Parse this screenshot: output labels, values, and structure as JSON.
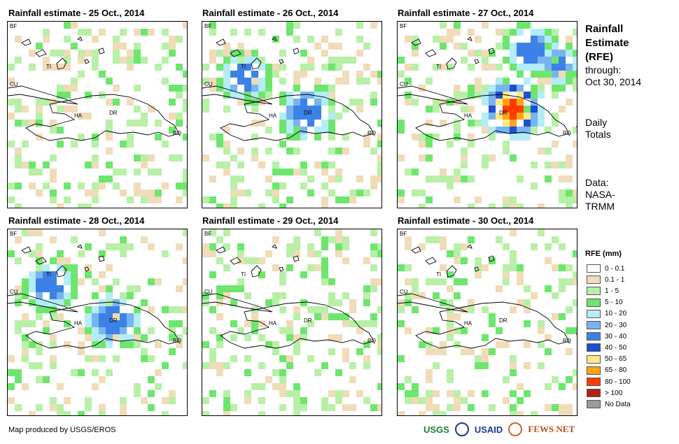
{
  "panels": [
    {
      "title": "Rainfall estimate - 25 Oct., 2014",
      "intensity": "light"
    },
    {
      "title": "Rainfall estimate - 26 Oct., 2014",
      "intensity": "moderate"
    },
    {
      "title": "Rainfall estimate - 27 Oct., 2014",
      "intensity": "heavy"
    },
    {
      "title": "Rainfall estimate - 28 Oct., 2014",
      "intensity": "moderate"
    },
    {
      "title": "Rainfall estimate - 29 Oct., 2014",
      "intensity": "light"
    },
    {
      "title": "Rainfall estimate - 30 Oct., 2014",
      "intensity": "light"
    }
  ],
  "map_labels": {
    "bf": "BF",
    "cu": "CU",
    "ti": "TI",
    "ha": "HA",
    "dr": "DR",
    "rq": "RQ"
  },
  "side": {
    "title_line1": "Rainfall",
    "title_line2": "Estimate",
    "title_line3": "(RFE)",
    "through": "through:",
    "date": "Oct 30, 2014",
    "daily1": "Daily",
    "daily2": "Totals",
    "data1": "Data:",
    "data2": "NASA-",
    "data3": "TRMM"
  },
  "legend": {
    "title": "RFE (mm)",
    "items": [
      {
        "label": "0 - 0.1",
        "color": "#ffffff"
      },
      {
        "label": "0.1 - 1",
        "color": "#f0dcb8"
      },
      {
        "label": "1 - 5",
        "color": "#b8f0a8"
      },
      {
        "label": "5 - 10",
        "color": "#6ee66e"
      },
      {
        "label": "10 - 20",
        "color": "#b4ecf8"
      },
      {
        "label": "20 - 30",
        "color": "#78b4f0"
      },
      {
        "label": "30 - 40",
        "color": "#3c82e6"
      },
      {
        "label": "40 - 50",
        "color": "#1e4ed2"
      },
      {
        "label": "50 - 65",
        "color": "#ffe88c"
      },
      {
        "label": "65 - 80",
        "color": "#ffa514"
      },
      {
        "label": "80 - 100",
        "color": "#ff3c00"
      },
      {
        "label": "> 100",
        "color": "#b41e1e"
      },
      {
        "label": "No Data",
        "color": "#9a9a9a"
      }
    ]
  },
  "credit": "Map produced by USGS/EROS",
  "logos": {
    "usgs": "USGS",
    "usaid": "USAID",
    "fews": "FEWS NET"
  }
}
